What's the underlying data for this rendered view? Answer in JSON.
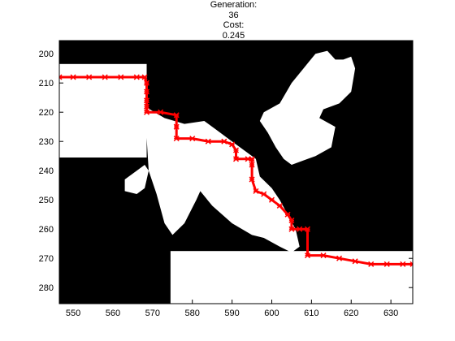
{
  "header": {
    "generation_label": "Generation:",
    "generation_value": "36",
    "cost_label": "Cost:",
    "cost_value": "0.245"
  },
  "chart_data": {
    "type": "line",
    "xlim": [
      546.5,
      635.5
    ],
    "ylim": [
      285.5,
      195.5
    ],
    "y_direction": "reverse",
    "x_ticks": [
      550,
      560,
      570,
      580,
      590,
      600,
      610,
      620,
      630
    ],
    "y_ticks": [
      200,
      210,
      220,
      230,
      240,
      250,
      260,
      270,
      280
    ],
    "grid": false,
    "colors": {
      "path": "#ff0000",
      "obstacle": "#000000",
      "free": "#ffffff",
      "frame": "#000000"
    },
    "path": {
      "x": [
        546.5,
        550,
        554,
        558,
        562,
        566,
        568,
        568.5,
        568.5,
        568.5,
        568.5,
        568.5,
        572,
        576,
        576,
        576,
        580,
        584,
        588,
        590,
        591,
        591,
        594,
        595,
        595,
        595,
        596,
        598,
        600,
        602,
        604,
        605,
        605,
        607,
        609,
        609,
        613,
        617,
        621,
        625,
        629,
        633,
        635.5
      ],
      "y": [
        208,
        208,
        208,
        208,
        208,
        208,
        208,
        210,
        213,
        216,
        218,
        220,
        220,
        221,
        225,
        229,
        229,
        230,
        230,
        231,
        233,
        236,
        236,
        236,
        238,
        243,
        247,
        248,
        250,
        252,
        255,
        257,
        260,
        260,
        260,
        269,
        269,
        270,
        271,
        272,
        272,
        272,
        272
      ]
    },
    "map_regions": [
      {
        "kind": "free",
        "x": [
          546.5,
          568.5
        ],
        "y": [
          203.5,
          235.5
        ]
      },
      {
        "kind": "free",
        "x": [
          574.5,
          635.5
        ],
        "y": [
          267.5,
          285.5
        ]
      },
      {
        "kind": "free",
        "poly_x": [
          568,
          573,
          578,
          583,
          586,
          590,
          593,
          596,
          597,
          600,
          602,
          604,
          606,
          607,
          605,
          602,
          598,
          595,
          590,
          585,
          582,
          581,
          578,
          575,
          573,
          571,
          569
        ],
        "poly_y": [
          218,
          222,
          224,
          223,
          226,
          230,
          233,
          236,
          242,
          246,
          250,
          255,
          260,
          266,
          268,
          266,
          263,
          262,
          258,
          252,
          247,
          250,
          258,
          262,
          258,
          248,
          240
        ]
      },
      {
        "kind": "free",
        "poly_x": [
          598,
          602,
          605,
          608,
          611,
          614,
          616,
          618,
          620,
          621,
          620,
          617,
          613,
          612,
          616,
          615,
          611,
          607,
          605,
          603,
          601,
          599,
          597
        ],
        "poly_y": [
          220,
          217,
          210,
          205,
          200,
          199,
          202,
          202,
          201,
          205,
          213,
          217,
          219,
          222,
          225,
          232,
          235,
          237,
          238,
          236,
          232,
          227,
          223
        ]
      },
      {
        "kind": "free",
        "poly_x": [
          604,
          607,
          609,
          610,
          608,
          606
        ],
        "poly_y": [
          214,
          211,
          212,
          216,
          219,
          218
        ]
      },
      {
        "kind": "free",
        "poly_x": [
          563,
          566,
          568,
          569,
          568,
          566,
          563
        ],
        "poly_y": [
          243,
          240,
          238,
          240,
          246,
          248,
          247
        ]
      }
    ]
  }
}
